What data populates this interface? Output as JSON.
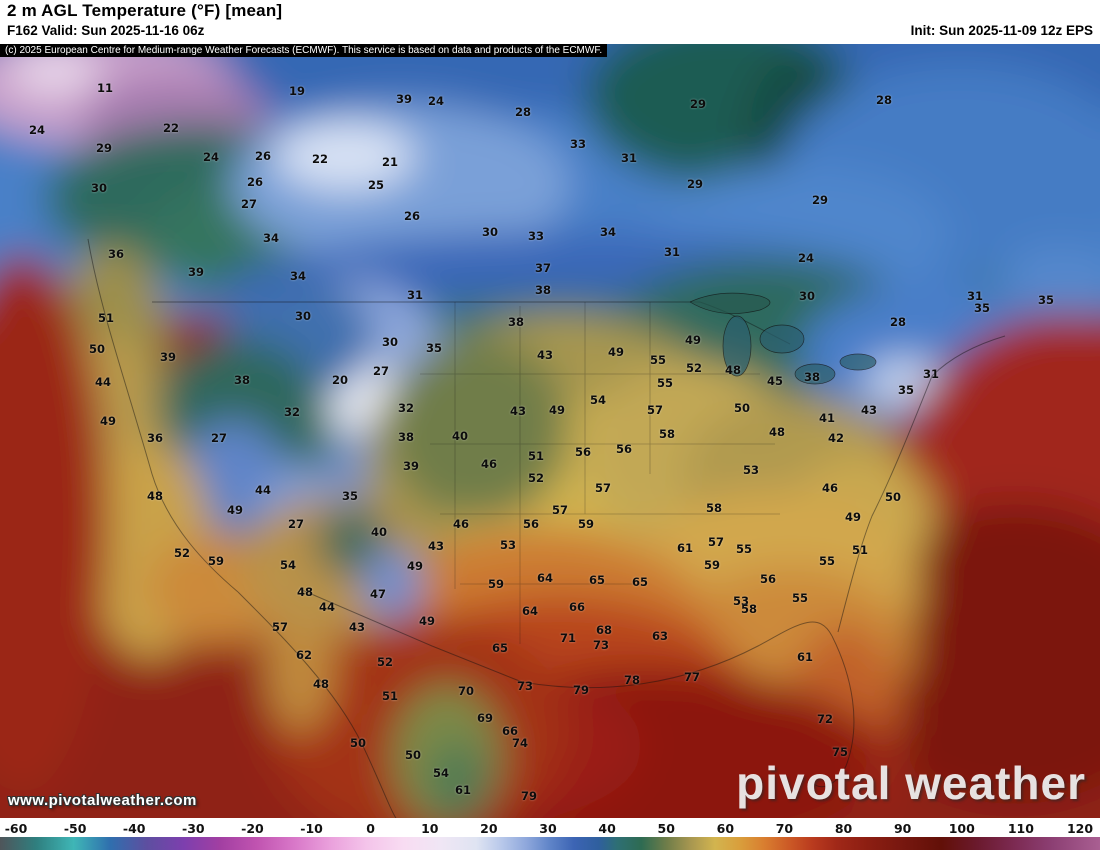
{
  "header": {
    "title": "2 m AGL Temperature (°F) [mean]",
    "valid_line": "F162 Valid: Sun 2025-11-16 06z",
    "init_line": "Init: Sun 2025-11-09 12z EPS"
  },
  "copyright_notice": "(c) 2025 European Centre for Medium-range Weather Forecasts (ECMWF). This service is based on data and products of the ECMWF.",
  "watermarks": {
    "site_url": "www.pivotalweather.com",
    "logo_text": "pivotal weather"
  },
  "colorbar": {
    "unit": "°F",
    "min": -60,
    "max": 120,
    "ticks": [
      -60,
      -50,
      -40,
      -30,
      -20,
      -10,
      0,
      10,
      20,
      30,
      40,
      50,
      60,
      70,
      80,
      90,
      100,
      110,
      120
    ],
    "stops": [
      {
        "t": -60,
        "c": "#4f555a"
      },
      {
        "t": -54,
        "c": "#2f7f7f"
      },
      {
        "t": -48,
        "c": "#3fb6b6"
      },
      {
        "t": -42,
        "c": "#2f6fae"
      },
      {
        "t": -36,
        "c": "#5d4fa0"
      },
      {
        "t": -30,
        "c": "#7d3fae"
      },
      {
        "t": -24,
        "c": "#a23fa2"
      },
      {
        "t": -18,
        "c": "#c053b0"
      },
      {
        "t": -12,
        "c": "#d877c8"
      },
      {
        "t": -6,
        "c": "#eaa0dc"
      },
      {
        "t": 0,
        "c": "#f4c4ea"
      },
      {
        "t": 6,
        "c": "#f8dcf2"
      },
      {
        "t": 12,
        "c": "#f0e6f5"
      },
      {
        "t": 18,
        "c": "#dfe4f2"
      },
      {
        "t": 22,
        "c": "#b8c8ea"
      },
      {
        "t": 26,
        "c": "#8fa8dc"
      },
      {
        "t": 30,
        "c": "#5f84c8"
      },
      {
        "t": 34,
        "c": "#3c64b4"
      },
      {
        "t": 38,
        "c": "#2f5f9e"
      },
      {
        "t": 41,
        "c": "#2e6f74"
      },
      {
        "t": 45,
        "c": "#2e6b52"
      },
      {
        "t": 49,
        "c": "#6f7d49"
      },
      {
        "t": 53,
        "c": "#a89750"
      },
      {
        "t": 57,
        "c": "#d2b44f"
      },
      {
        "t": 61,
        "c": "#d99f3c"
      },
      {
        "t": 65,
        "c": "#d97f30"
      },
      {
        "t": 69,
        "c": "#cc5a26"
      },
      {
        "t": 73,
        "c": "#b93a1e"
      },
      {
        "t": 77,
        "c": "#a02818"
      },
      {
        "t": 82,
        "c": "#8c1e12"
      },
      {
        "t": 88,
        "c": "#76170f"
      },
      {
        "t": 94,
        "c": "#621008"
      },
      {
        "t": 100,
        "c": "#6b1a2e"
      },
      {
        "t": 106,
        "c": "#7c2a52"
      },
      {
        "t": 112,
        "c": "#8c3f73"
      },
      {
        "t": 120,
        "c": "#a95f92"
      }
    ]
  },
  "map": {
    "type": "2m_temperature_mean_analysis",
    "region": "North America",
    "temperature_labels_vxy": [
      [
        11,
        105,
        88
      ],
      [
        19,
        297,
        91
      ],
      [
        39,
        404,
        99
      ],
      [
        24,
        436,
        101
      ],
      [
        29,
        698,
        104
      ],
      [
        28,
        523,
        112
      ],
      [
        28,
        884,
        100
      ],
      [
        24,
        37,
        130
      ],
      [
        22,
        171,
        128
      ],
      [
        33,
        578,
        144
      ],
      [
        29,
        104,
        148
      ],
      [
        24,
        211,
        157
      ],
      [
        26,
        263,
        156
      ],
      [
        22,
        320,
        159
      ],
      [
        31,
        629,
        158
      ],
      [
        21,
        390,
        162
      ],
      [
        26,
        255,
        182
      ],
      [
        25,
        376,
        185
      ],
      [
        29,
        695,
        184
      ],
      [
        30,
        99,
        188
      ],
      [
        29,
        820,
        200
      ],
      [
        27,
        249,
        204
      ],
      [
        26,
        412,
        216
      ],
      [
        34,
        608,
        232
      ],
      [
        30,
        490,
        232
      ],
      [
        33,
        536,
        236
      ],
      [
        34,
        271,
        238
      ],
      [
        31,
        672,
        252
      ],
      [
        36,
        116,
        254
      ],
      [
        24,
        806,
        258
      ],
      [
        37,
        543,
        268
      ],
      [
        39,
        196,
        272
      ],
      [
        34,
        298,
        276
      ],
      [
        38,
        543,
        290
      ],
      [
        31,
        415,
        295
      ],
      [
        30,
        807,
        296
      ],
      [
        31,
        975,
        296
      ],
      [
        35,
        1046,
        300
      ],
      [
        35,
        982,
        308
      ],
      [
        30,
        303,
        316
      ],
      [
        51,
        106,
        318
      ],
      [
        38,
        516,
        322
      ],
      [
        28,
        898,
        322
      ],
      [
        49,
        693,
        340
      ],
      [
        30,
        390,
        342
      ],
      [
        35,
        434,
        348
      ],
      [
        50,
        97,
        349
      ],
      [
        43,
        545,
        355
      ],
      [
        49,
        616,
        352
      ],
      [
        39,
        168,
        357
      ],
      [
        55,
        658,
        360
      ],
      [
        52,
        694,
        368
      ],
      [
        48,
        733,
        370
      ],
      [
        27,
        381,
        371
      ],
      [
        31,
        931,
        374
      ],
      [
        38,
        812,
        377
      ],
      [
        20,
        340,
        380
      ],
      [
        38,
        242,
        380
      ],
      [
        45,
        775,
        381
      ],
      [
        44,
        103,
        382
      ],
      [
        55,
        665,
        383
      ],
      [
        35,
        906,
        390
      ],
      [
        54,
        598,
        400
      ],
      [
        32,
        406,
        408
      ],
      [
        43,
        518,
        411
      ],
      [
        49,
        557,
        410
      ],
      [
        57,
        655,
        410
      ],
      [
        50,
        742,
        408
      ],
      [
        43,
        869,
        410
      ],
      [
        32,
        292,
        412
      ],
      [
        41,
        827,
        418
      ],
      [
        49,
        108,
        421
      ],
      [
        58,
        667,
        434
      ],
      [
        40,
        460,
        436
      ],
      [
        38,
        406,
        437
      ],
      [
        36,
        155,
        438
      ],
      [
        27,
        219,
        438
      ],
      [
        42,
        836,
        438
      ],
      [
        48,
        777,
        432
      ],
      [
        56,
        624,
        449
      ],
      [
        56,
        583,
        452
      ],
      [
        51,
        536,
        456
      ],
      [
        46,
        489,
        464
      ],
      [
        39,
        411,
        466
      ],
      [
        53,
        751,
        470
      ],
      [
        52,
        536,
        478
      ],
      [
        57,
        603,
        488
      ],
      [
        46,
        830,
        488
      ],
      [
        44,
        263,
        490
      ],
      [
        48,
        155,
        496
      ],
      [
        35,
        350,
        496
      ],
      [
        50,
        893,
        497
      ],
      [
        58,
        714,
        508
      ],
      [
        49,
        235,
        510
      ],
      [
        57,
        560,
        510
      ],
      [
        49,
        853,
        517
      ],
      [
        56,
        531,
        524
      ],
      [
        59,
        586,
        524
      ],
      [
        27,
        296,
        524
      ],
      [
        46,
        461,
        524
      ],
      [
        40,
        379,
        532
      ],
      [
        57,
        716,
        542
      ],
      [
        43,
        436,
        546
      ],
      [
        53,
        508,
        545
      ],
      [
        61,
        685,
        548
      ],
      [
        55,
        744,
        549
      ],
      [
        51,
        860,
        550
      ],
      [
        52,
        182,
        553
      ],
      [
        59,
        216,
        561
      ],
      [
        55,
        827,
        561
      ],
      [
        54,
        288,
        565
      ],
      [
        49,
        415,
        566
      ],
      [
        59,
        712,
        565
      ],
      [
        56,
        768,
        579
      ],
      [
        64,
        545,
        578
      ],
      [
        65,
        597,
        580
      ],
      [
        65,
        640,
        582
      ],
      [
        59,
        496,
        584
      ],
      [
        48,
        305,
        592
      ],
      [
        47,
        378,
        594
      ],
      [
        55,
        800,
        598
      ],
      [
        53,
        741,
        601
      ],
      [
        44,
        327,
        607
      ],
      [
        66,
        577,
        607
      ],
      [
        58,
        749,
        609
      ],
      [
        64,
        530,
        611
      ],
      [
        49,
        427,
        621
      ],
      [
        57,
        280,
        627
      ],
      [
        43,
        357,
        627
      ],
      [
        68,
        604,
        630
      ],
      [
        63,
        660,
        636
      ],
      [
        71,
        568,
        638
      ],
      [
        73,
        601,
        645
      ],
      [
        65,
        500,
        648
      ],
      [
        62,
        304,
        655
      ],
      [
        61,
        805,
        657
      ],
      [
        52,
        385,
        662
      ],
      [
        78,
        632,
        680
      ],
      [
        77,
        692,
        677
      ],
      [
        48,
        321,
        684
      ],
      [
        73,
        525,
        686
      ],
      [
        79,
        581,
        690
      ],
      [
        70,
        466,
        691
      ],
      [
        51,
        390,
        696
      ],
      [
        69,
        485,
        718
      ],
      [
        72,
        825,
        719
      ],
      [
        66,
        510,
        731
      ],
      [
        50,
        358,
        743
      ],
      [
        74,
        520,
        743
      ],
      [
        75,
        840,
        752
      ],
      [
        50,
        413,
        755
      ],
      [
        54,
        441,
        773
      ],
      [
        61,
        463,
        790
      ],
      [
        79,
        529,
        796
      ]
    ]
  }
}
